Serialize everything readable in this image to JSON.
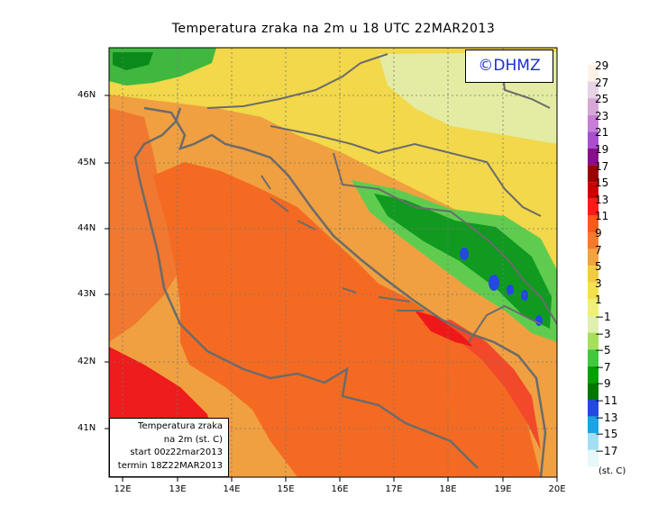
{
  "title": "Temperatura zraka na 2m u 18 UTC 22MAR2013",
  "logo_text": "©DHMZ",
  "info_box": {
    "line1": "Temperatura zraka",
    "line2": "na 2m (st. C)",
    "line3": "start 00z22mar2013",
    "line4": "termin 18Z22MAR2013"
  },
  "lat_labels": [
    "46N",
    "45N",
    "44N",
    "43N",
    "42N",
    "41N"
  ],
  "lon_labels": [
    "12E",
    "13E",
    "14E",
    "15E",
    "16E",
    "17E",
    "18E",
    "19E",
    "20E"
  ],
  "colorbar": {
    "unit": "(st. C)",
    "labels": [
      "29",
      "27",
      "25",
      "23",
      "21",
      "19",
      "17",
      "15",
      "13",
      "11",
      "9",
      "7",
      "5",
      "3",
      "1",
      "−1",
      "−3",
      "−5",
      "−7",
      "−9",
      "−11",
      "−13",
      "−15",
      "−17"
    ],
    "colors": [
      "#fff2e6",
      "#e6d3e6",
      "#d6a8d6",
      "#c77ed6",
      "#a84fcf",
      "#8a0e8a",
      "#9c0000",
      "#cc0000",
      "#ff1a1a",
      "#ff5a1a",
      "#f57a2a",
      "#f2a33c",
      "#f2cc40",
      "#f2e14d",
      "#f0f078",
      "#dff0b0",
      "#a6e05a",
      "#40c840",
      "#00a000",
      "#007800",
      "#2448e0",
      "#1aa3e6",
      "#a3dff2",
      "#e6f8fa"
    ]
  },
  "colors": {
    "sea": "#f56a22",
    "coast_line": "#6b6b6b"
  }
}
